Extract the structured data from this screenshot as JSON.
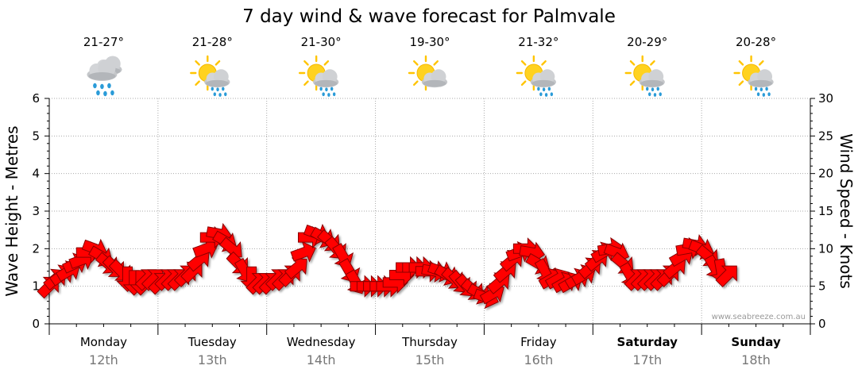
{
  "chart_data": {
    "type": "line",
    "title": "7 day wind & wave forecast for Palmvale",
    "ylabel_left": "Wave Height - Metres",
    "ylabel_right": "Wind Speed - Knots",
    "ylim_left": [
      0,
      6
    ],
    "ylim_right": [
      0,
      30
    ],
    "yticks_left": [
      0,
      1,
      2,
      3,
      4,
      5,
      6
    ],
    "yticks_right": [
      0,
      5,
      10,
      15,
      20,
      25,
      30
    ],
    "grid": true,
    "watermark": "www.seabreeze.com.au",
    "days": [
      {
        "day": "Monday",
        "date": "12th",
        "temp": "21-27°",
        "weather_icon": "rain-cloud-icon",
        "bold": false
      },
      {
        "day": "Tuesday",
        "date": "13th",
        "temp": "21-28°",
        "weather_icon": "sun-rain-cloud-icon",
        "bold": false
      },
      {
        "day": "Wednesday",
        "date": "14th",
        "temp": "21-30°",
        "weather_icon": "sun-rain-cloud-icon",
        "bold": false
      },
      {
        "day": "Thursday",
        "date": "15th",
        "temp": "19-30°",
        "weather_icon": "sun-cloud-icon",
        "bold": false
      },
      {
        "day": "Friday",
        "date": "16th",
        "temp": "21-32°",
        "weather_icon": "sun-rain-cloud-icon",
        "bold": false
      },
      {
        "day": "Saturday",
        "date": "17th",
        "temp": "20-29°",
        "weather_icon": "sun-rain-cloud-icon",
        "bold": true
      },
      {
        "day": "Sunday",
        "date": "18th",
        "temp": "20-28°",
        "weather_icon": "sun-rain-cloud-icon",
        "bold": true
      }
    ],
    "series": [
      {
        "name": "Wind Speed",
        "units": "knots",
        "color": "#ff0000",
        "marker": "wind-arrow",
        "points": [
          [
            0.0,
            5.0,
            45
          ],
          [
            0.06,
            6.0,
            40
          ],
          [
            0.12,
            6.5,
            35
          ],
          [
            0.18,
            7.0,
            30
          ],
          [
            0.24,
            8.0,
            25
          ],
          [
            0.3,
            8.5,
            20
          ],
          [
            0.36,
            9.5,
            0
          ],
          [
            0.42,
            10.0,
            -20
          ],
          [
            0.48,
            9.0,
            -30
          ],
          [
            0.54,
            8.0,
            -40
          ],
          [
            0.6,
            7.5,
            -45
          ],
          [
            0.66,
            7.0,
            -45
          ],
          [
            0.72,
            6.0,
            -90
          ],
          [
            0.78,
            5.5,
            -90
          ],
          [
            0.84,
            5.5,
            -90
          ],
          [
            0.9,
            6.0,
            45
          ],
          [
            0.96,
            6.0,
            45
          ],
          [
            1.02,
            5.5,
            45
          ],
          [
            1.08,
            6.0,
            45
          ],
          [
            1.14,
            6.0,
            45
          ],
          [
            1.2,
            6.0,
            45
          ],
          [
            1.26,
            6.5,
            45
          ],
          [
            1.32,
            7.0,
            45
          ],
          [
            1.38,
            8.5,
            40
          ],
          [
            1.44,
            10.0,
            20
          ],
          [
            1.5,
            11.5,
            0
          ],
          [
            1.56,
            12.0,
            -10
          ],
          [
            1.62,
            11.0,
            -30
          ],
          [
            1.68,
            10.0,
            -40
          ],
          [
            1.74,
            8.0,
            -45
          ],
          [
            1.8,
            7.0,
            -60
          ],
          [
            1.86,
            6.0,
            -90
          ],
          [
            1.92,
            5.5,
            45
          ],
          [
            1.98,
            5.5,
            45
          ],
          [
            2.04,
            5.5,
            45
          ],
          [
            2.1,
            6.0,
            45
          ],
          [
            2.16,
            6.0,
            45
          ],
          [
            2.22,
            6.5,
            45
          ],
          [
            2.28,
            7.5,
            40
          ],
          [
            2.34,
            9.5,
            20
          ],
          [
            2.4,
            11.5,
            0
          ],
          [
            2.46,
            12.0,
            -20
          ],
          [
            2.52,
            11.5,
            -30
          ],
          [
            2.58,
            11.0,
            -40
          ],
          [
            2.64,
            10.0,
            -50
          ],
          [
            2.7,
            9.0,
            -60
          ],
          [
            2.76,
            7.0,
            -60
          ],
          [
            2.82,
            5.5,
            -60
          ],
          [
            2.88,
            5.0,
            0
          ],
          [
            2.94,
            5.0,
            0
          ],
          [
            3.0,
            5.0,
            0
          ],
          [
            3.06,
            5.0,
            0
          ],
          [
            3.12,
            5.0,
            0
          ],
          [
            3.18,
            5.5,
            0
          ],
          [
            3.24,
            6.5,
            0
          ],
          [
            3.3,
            7.5,
            0
          ],
          [
            3.36,
            7.5,
            0
          ],
          [
            3.42,
            7.5,
            0
          ],
          [
            3.48,
            7.0,
            0
          ],
          [
            3.54,
            7.0,
            -10
          ],
          [
            3.6,
            7.0,
            -20
          ],
          [
            3.66,
            6.5,
            -30
          ],
          [
            3.72,
            6.0,
            -40
          ],
          [
            3.78,
            5.5,
            -50
          ],
          [
            3.84,
            5.0,
            -50
          ],
          [
            3.9,
            4.5,
            -40
          ],
          [
            3.96,
            4.0,
            -30
          ],
          [
            4.02,
            3.5,
            -20
          ],
          [
            4.08,
            4.0,
            30
          ],
          [
            4.14,
            5.5,
            40
          ],
          [
            4.2,
            7.0,
            40
          ],
          [
            4.26,
            8.5,
            40
          ],
          [
            4.32,
            9.5,
            20
          ],
          [
            4.38,
            10.0,
            0
          ],
          [
            4.44,
            9.5,
            -10
          ],
          [
            4.5,
            8.0,
            -30
          ],
          [
            4.56,
            7.0,
            -60
          ],
          [
            4.62,
            6.0,
            30
          ],
          [
            4.68,
            6.0,
            30
          ],
          [
            4.74,
            5.5,
            30
          ],
          [
            4.8,
            5.5,
            30
          ],
          [
            4.86,
            6.0,
            30
          ],
          [
            4.92,
            6.5,
            30
          ],
          [
            4.98,
            7.5,
            40
          ],
          [
            5.04,
            8.5,
            40
          ],
          [
            5.1,
            9.5,
            30
          ],
          [
            5.16,
            10.0,
            10
          ],
          [
            5.22,
            9.5,
            -20
          ],
          [
            5.28,
            8.0,
            -40
          ],
          [
            5.34,
            6.5,
            -60
          ],
          [
            5.4,
            6.0,
            45
          ],
          [
            5.46,
            6.0,
            45
          ],
          [
            5.52,
            6.0,
            45
          ],
          [
            5.58,
            6.0,
            45
          ],
          [
            5.64,
            6.0,
            45
          ],
          [
            5.7,
            6.5,
            45
          ],
          [
            5.76,
            7.5,
            40
          ],
          [
            5.82,
            9.0,
            30
          ],
          [
            5.88,
            10.0,
            10
          ],
          [
            5.94,
            10.5,
            -10
          ],
          [
            6.0,
            10.0,
            -20
          ],
          [
            6.06,
            9.0,
            -40
          ],
          [
            6.12,
            7.5,
            -60
          ],
          [
            6.18,
            7.0,
            -80
          ],
          [
            6.24,
            6.5,
            45
          ]
        ]
      }
    ]
  }
}
